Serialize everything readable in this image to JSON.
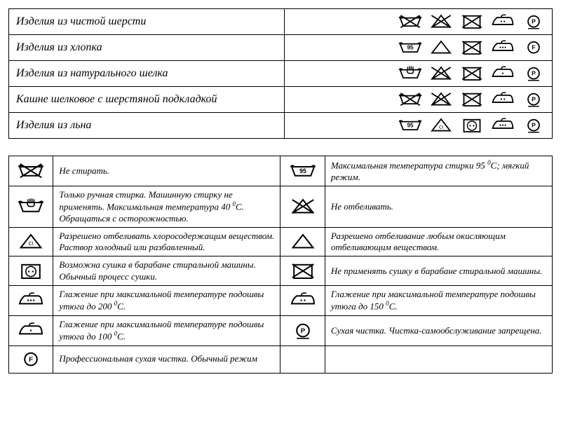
{
  "colors": {
    "stroke": "#000000",
    "bg": "#ffffff"
  },
  "icon_size": {
    "w": 36,
    "h": 28
  },
  "icons": {
    "wash_no": {
      "base": "wash",
      "cross": true
    },
    "wash_hand": {
      "base": "wash_hand",
      "cross": false
    },
    "wash_95": {
      "base": "wash_temp",
      "temp": "95",
      "cross": false
    },
    "bleach_no": {
      "base": "bleach",
      "cross": true
    },
    "bleach_any": {
      "base": "bleach",
      "cross": false
    },
    "bleach_cl": {
      "base": "bleach_cl",
      "cross": false
    },
    "dry_no": {
      "base": "dry",
      "cross": true
    },
    "dry_2dot": {
      "base": "dry_2dot",
      "cross": false
    },
    "iron_200": {
      "base": "iron",
      "dots": 3,
      "cross": false
    },
    "iron_150": {
      "base": "iron",
      "dots": 2,
      "cross": false
    },
    "iron_100": {
      "base": "iron",
      "dots": 1,
      "cross": false
    },
    "dryclean_p": {
      "base": "circle",
      "letter": "P",
      "underline": true,
      "cross": false
    },
    "dryclean_f": {
      "base": "circle",
      "letter": "F",
      "underline": false,
      "cross": false
    }
  },
  "materials": [
    {
      "label": "Изделия из чистой шерсти",
      "symbols": [
        "wash_no",
        "bleach_no",
        "dry_no",
        "iron_150",
        "dryclean_p"
      ]
    },
    {
      "label": "Изделия из  хлопка",
      "symbols": [
        "wash_95",
        "bleach_any",
        "dry_no",
        "iron_200",
        "dryclean_f"
      ]
    },
    {
      "label": "Изделия из натурального шелка",
      "symbols": [
        "wash_hand",
        "bleach_no",
        "dry_no",
        "iron_100",
        "dryclean_p"
      ]
    },
    {
      "label": "Кашне шелковое с шерстяной подкладкой",
      "symbols": [
        "wash_no",
        "bleach_no",
        "dry_no",
        "iron_150",
        "dryclean_p"
      ]
    },
    {
      "label": "Изделия из льна",
      "symbols": [
        "wash_95",
        "bleach_cl",
        "dry_2dot",
        "iron_200",
        "dryclean_p"
      ]
    }
  ],
  "legend": [
    [
      {
        "icon": "wash_no",
        "text": "Не стирать."
      },
      {
        "icon": "wash_95",
        "text": "Максимальная температура стирки 95 ⁰С; мягкий режим."
      }
    ],
    [
      {
        "icon": "wash_hand",
        "text": "Только ручная стирка. Машинную стирку не применять. Максимальная температура 40 ⁰С. Обращаться с осторожностью."
      },
      {
        "icon": "bleach_no",
        "text": "Не отбеливать."
      }
    ],
    [
      {
        "icon": "bleach_cl",
        "text": "Разрешено отбеливать хлоросодержащим веществом. Раствор холодный или разбавленный."
      },
      {
        "icon": "bleach_any",
        "text": "Разрешено отбеливание любым окисляющим отбеливающим веществом."
      }
    ],
    [
      {
        "icon": "dry_2dot",
        "text": "Возможна сушка в барабане стиральной машины. Обычный процесс сушки."
      },
      {
        "icon": "dry_no",
        "text": "Не применять сушку в барабане стиральной машины."
      }
    ],
    [
      {
        "icon": "iron_200",
        "text": "Глажение при максимальной температуре подошвы утюга до 200 ⁰С."
      },
      {
        "icon": "iron_150",
        "text": "Глажение при максимальной температуре подошвы утюга до 150 ⁰С."
      }
    ],
    [
      {
        "icon": "iron_100",
        "text": "Глажение при максимальной температуре подошвы утюга до 100 ⁰С."
      },
      {
        "icon": "dryclean_p",
        "text": "Сухая чистка. Чистка-самообслуживание запрещена."
      }
    ],
    [
      {
        "icon": "dryclean_f",
        "text": "Профессиональная сухая чистка. Обычный режим"
      },
      null
    ]
  ]
}
